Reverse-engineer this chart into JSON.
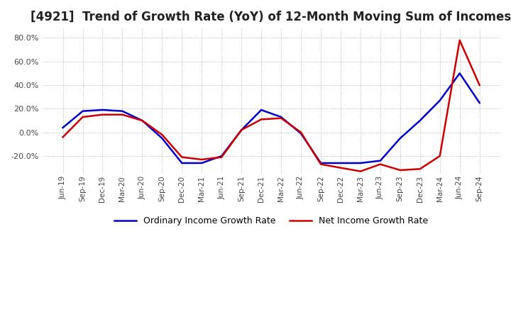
{
  "title": "[4921]  Trend of Growth Rate (YoY) of 12-Month Moving Sum of Incomes",
  "title_fontsize": 12,
  "ylim": [
    -35,
    88
  ],
  "yticks": [
    -20.0,
    0.0,
    20.0,
    40.0,
    60.0,
    80.0
  ],
  "background_color": "#ffffff",
  "grid_color": "#aaaaaa",
  "legend_labels": [
    "Ordinary Income Growth Rate",
    "Net Income Growth Rate"
  ],
  "legend_colors": [
    "#0000cc",
    "#cc0000"
  ],
  "dates": [
    "Jun-19",
    "Sep-19",
    "Dec-19",
    "Mar-20",
    "Jun-20",
    "Sep-20",
    "Dec-20",
    "Mar-21",
    "Jun-21",
    "Sep-21",
    "Dec-21",
    "Mar-22",
    "Jun-22",
    "Sep-22",
    "Dec-22",
    "Mar-23",
    "Jun-23",
    "Sep-23",
    "Dec-23",
    "Mar-24",
    "Jun-24",
    "Sep-24"
  ],
  "ordinary_income": [
    4.0,
    18.0,
    19.0,
    18.0,
    10.0,
    -5.0,
    -26.0,
    -26.0,
    -20.0,
    2.0,
    19.0,
    13.0,
    -1.0,
    -26.0,
    -26.0,
    -26.0,
    -24.0,
    -5.0,
    10.0,
    27.0,
    50.0,
    25.0
  ],
  "net_income": [
    -4.0,
    13.0,
    15.0,
    15.0,
    10.0,
    -2.0,
    -21.0,
    -23.0,
    -21.0,
    2.0,
    11.0,
    12.0,
    0.0,
    -27.0,
    -30.0,
    -33.0,
    -27.0,
    -32.0,
    -31.0,
    -20.0,
    78.0,
    40.0
  ]
}
